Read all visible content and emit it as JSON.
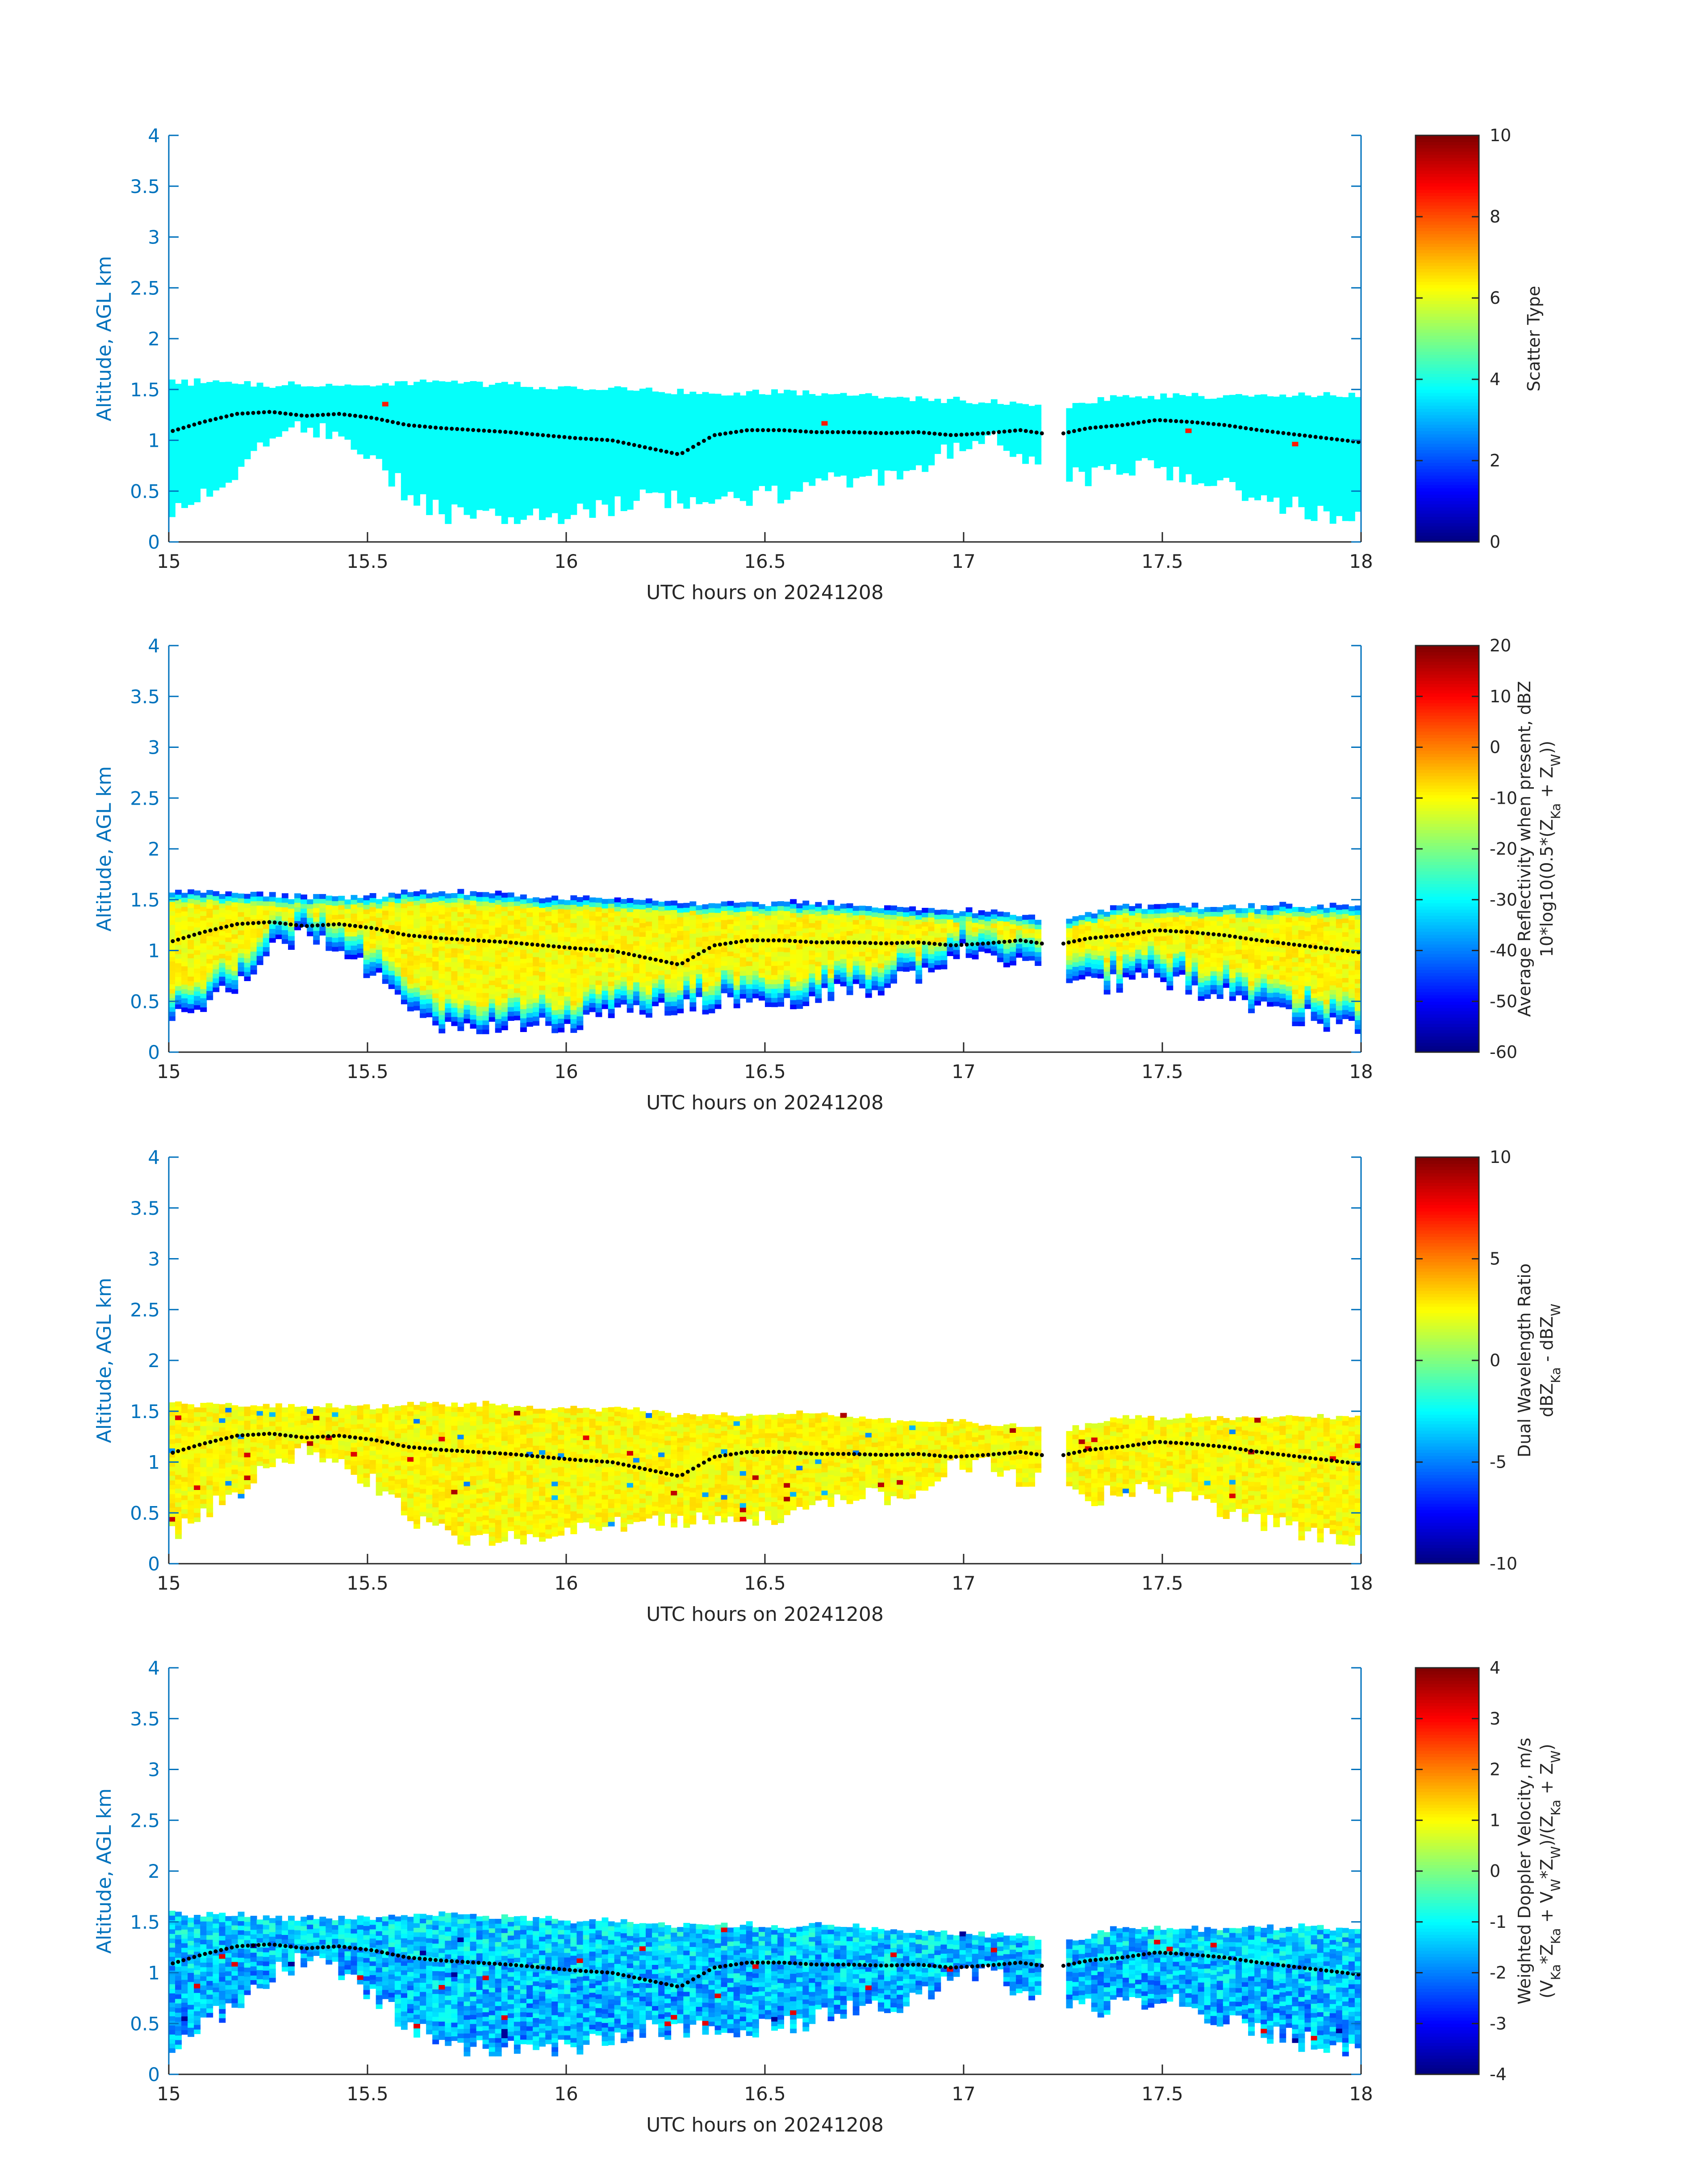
{
  "chart_data": [
    {
      "type": "heatmap",
      "xlabel": "UTC hours on 20241208",
      "ylabel": "Altitude, AGL km",
      "xlim": [
        15,
        18
      ],
      "ylim": [
        0,
        4
      ],
      "xticks": [
        "15",
        "15.5",
        "16",
        "16.5",
        "17",
        "17.5",
        "18"
      ],
      "yticks": [
        "0",
        "0.5",
        "1",
        "1.5",
        "2",
        "2.5",
        "3",
        "3.5",
        "4"
      ],
      "colorbar": {
        "label_lines": [
          "Scatter Type"
        ],
        "range": [
          0,
          10
        ],
        "ticks": [
          "0",
          "2",
          "4",
          "6",
          "8",
          "10"
        ]
      },
      "dominant_value": 3.8,
      "outlier_values": [
        8.5
      ],
      "colormap": "jet",
      "cloud_base_km": [
        0.25,
        0.45,
        0.65,
        0.95,
        1.1,
        0.95,
        0.75,
        0.45,
        0.25,
        0.2,
        0.2,
        0.2,
        0.25,
        0.3,
        0.4,
        0.35,
        0.45,
        0.4,
        0.45,
        0.5,
        0.6,
        0.6,
        0.7,
        0.9,
        1.0,
        0.8,
        0.7,
        0.6,
        0.65,
        0.7,
        0.6,
        0.5,
        0.4,
        0.3,
        0.25,
        0.2
      ],
      "cloud_top_km": [
        1.55,
        1.55,
        1.55,
        1.52,
        1.52,
        1.52,
        1.52,
        1.55,
        1.55,
        1.55,
        1.53,
        1.5,
        1.5,
        1.5,
        1.48,
        1.45,
        1.45,
        1.45,
        1.45,
        1.45,
        1.43,
        1.4,
        1.38,
        1.38,
        1.35,
        1.35,
        1.25,
        1.35,
        1.42,
        1.42,
        1.42,
        1.42,
        1.42,
        1.42,
        1.42,
        1.42
      ],
      "gaps": [
        [
          17.2,
          17.25
        ]
      ],
      "boundary_layer_height_km": [
        1.08,
        1.18,
        1.26,
        1.28,
        1.24,
        1.26,
        1.22,
        1.15,
        1.12,
        1.1,
        1.08,
        1.05,
        1.02,
        1.0,
        0.93,
        0.86,
        1.05,
        1.1,
        1.1,
        1.08,
        1.08,
        1.07,
        1.08,
        1.05,
        1.07,
        1.1,
        1.05,
        1.12,
        1.15,
        1.2,
        1.18,
        1.15,
        1.1,
        1.06,
        1.02,
        0.98
      ]
    },
    {
      "type": "heatmap",
      "xlabel": "UTC hours on 20241208",
      "ylabel": "Altitude, AGL km",
      "xlim": [
        15,
        18
      ],
      "ylim": [
        0,
        4
      ],
      "xticks": [
        "15",
        "15.5",
        "16",
        "16.5",
        "17",
        "17.5",
        "18"
      ],
      "yticks": [
        "0",
        "0.5",
        "1",
        "1.5",
        "2",
        "2.5",
        "3",
        "3.5",
        "4"
      ],
      "colorbar": {
        "label_lines": [
          "Average Reflectivity when present, dBZ",
          "10*log10(0.5*(Z<sub>Ka</sub> + Z<sub>W</sub>))"
        ],
        "range": [
          -60,
          20
        ],
        "ticks": [
          "-60",
          "-50",
          "-40",
          "-30",
          "-20",
          "-10",
          "0",
          "10",
          "20"
        ]
      },
      "value_range_shown": [
        -55,
        -5
      ],
      "colormap": "jet",
      "cloud_base_km": [
        0.25,
        0.45,
        0.65,
        0.95,
        1.1,
        0.95,
        0.75,
        0.45,
        0.25,
        0.2,
        0.2,
        0.2,
        0.25,
        0.3,
        0.4,
        0.35,
        0.45,
        0.4,
        0.45,
        0.5,
        0.6,
        0.6,
        0.7,
        0.9,
        1.0,
        0.8,
        0.7,
        0.6,
        0.65,
        0.7,
        0.6,
        0.5,
        0.4,
        0.3,
        0.25,
        0.2
      ],
      "cloud_top_km": [
        1.55,
        1.55,
        1.55,
        1.52,
        1.52,
        1.52,
        1.52,
        1.55,
        1.55,
        1.55,
        1.53,
        1.5,
        1.5,
        1.5,
        1.48,
        1.45,
        1.45,
        1.45,
        1.45,
        1.45,
        1.43,
        1.4,
        1.38,
        1.38,
        1.35,
        1.35,
        1.25,
        1.35,
        1.42,
        1.42,
        1.42,
        1.42,
        1.42,
        1.42,
        1.42,
        1.42
      ],
      "gaps": [
        [
          17.2,
          17.25
        ]
      ],
      "boundary_layer_height_km": [
        1.08,
        1.18,
        1.26,
        1.28,
        1.24,
        1.26,
        1.22,
        1.15,
        1.12,
        1.1,
        1.08,
        1.05,
        1.02,
        1.0,
        0.93,
        0.86,
        1.05,
        1.1,
        1.1,
        1.08,
        1.08,
        1.07,
        1.08,
        1.05,
        1.07,
        1.1,
        1.05,
        1.12,
        1.15,
        1.2,
        1.18,
        1.15,
        1.1,
        1.06,
        1.02,
        0.98
      ]
    },
    {
      "type": "heatmap",
      "xlabel": "UTC hours on 20241208",
      "ylabel": "Altitude, AGL km",
      "xlim": [
        15,
        18
      ],
      "ylim": [
        0,
        4
      ],
      "xticks": [
        "15",
        "15.5",
        "16",
        "16.5",
        "17",
        "17.5",
        "18"
      ],
      "yticks": [
        "0",
        "0.5",
        "1",
        "1.5",
        "2",
        "2.5",
        "3",
        "3.5",
        "4"
      ],
      "colorbar": {
        "label_lines": [
          "Dual Wavelength Ratio",
          "dBZ<sub>Ka</sub> - dBZ<sub>W</sub>"
        ],
        "range": [
          -10,
          10
        ],
        "ticks": [
          "-10",
          "-5",
          "0",
          "5",
          "10"
        ]
      },
      "value_range_shown": [
        0,
        5
      ],
      "colormap": "jet",
      "cloud_base_km": [
        0.25,
        0.45,
        0.65,
        0.95,
        1.1,
        0.95,
        0.75,
        0.45,
        0.25,
        0.2,
        0.2,
        0.2,
        0.25,
        0.3,
        0.4,
        0.35,
        0.45,
        0.4,
        0.45,
        0.5,
        0.6,
        0.6,
        0.7,
        0.9,
        1.0,
        0.8,
        0.7,
        0.6,
        0.65,
        0.7,
        0.6,
        0.5,
        0.4,
        0.3,
        0.25,
        0.2
      ],
      "cloud_top_km": [
        1.55,
        1.55,
        1.55,
        1.52,
        1.52,
        1.52,
        1.52,
        1.55,
        1.55,
        1.55,
        1.53,
        1.5,
        1.5,
        1.5,
        1.48,
        1.45,
        1.45,
        1.45,
        1.45,
        1.45,
        1.43,
        1.4,
        1.38,
        1.38,
        1.35,
        1.35,
        1.25,
        1.35,
        1.42,
        1.42,
        1.42,
        1.42,
        1.42,
        1.42,
        1.42,
        1.42
      ],
      "gaps": [
        [
          17.2,
          17.25
        ]
      ],
      "boundary_layer_height_km": [
        1.08,
        1.18,
        1.26,
        1.28,
        1.24,
        1.26,
        1.22,
        1.15,
        1.12,
        1.1,
        1.08,
        1.05,
        1.02,
        1.0,
        0.93,
        0.86,
        1.05,
        1.1,
        1.1,
        1.08,
        1.08,
        1.07,
        1.08,
        1.05,
        1.07,
        1.1,
        1.05,
        1.12,
        1.15,
        1.2,
        1.18,
        1.15,
        1.1,
        1.06,
        1.02,
        0.98
      ]
    },
    {
      "type": "heatmap",
      "xlabel": "UTC hours on 20241208",
      "ylabel": "Altitude, AGL km",
      "xlim": [
        15,
        18
      ],
      "ylim": [
        0,
        4
      ],
      "xticks": [
        "15",
        "15.5",
        "16",
        "16.5",
        "17",
        "17.5",
        "18"
      ],
      "yticks": [
        "0",
        "0.5",
        "1",
        "1.5",
        "2",
        "2.5",
        "3",
        "3.5",
        "4"
      ],
      "colorbar": {
        "label_lines": [
          "Weighted Doppler Velocity, m/s",
          "(V<sub>Ka</sub>*Z<sub>Ka</sub> + V<sub>W</sub>*Z<sub>W</sub>)/(Z<sub>Ka</sub> + Z<sub>W</sub>)"
        ],
        "range": [
          -4,
          4
        ],
        "ticks": [
          "-4",
          "-3",
          "-2",
          "-1",
          "0",
          "1",
          "2",
          "3",
          "4"
        ]
      },
      "value_range_shown": [
        -2.5,
        0.5
      ],
      "colormap": "jet",
      "cloud_base_km": [
        0.25,
        0.45,
        0.65,
        0.95,
        1.1,
        0.95,
        0.75,
        0.45,
        0.25,
        0.2,
        0.2,
        0.2,
        0.25,
        0.3,
        0.4,
        0.35,
        0.45,
        0.4,
        0.45,
        0.5,
        0.6,
        0.6,
        0.7,
        0.9,
        1.0,
        0.8,
        0.7,
        0.6,
        0.65,
        0.7,
        0.6,
        0.5,
        0.4,
        0.3,
        0.25,
        0.2
      ],
      "cloud_top_km": [
        1.55,
        1.55,
        1.55,
        1.52,
        1.52,
        1.52,
        1.52,
        1.55,
        1.55,
        1.55,
        1.53,
        1.5,
        1.5,
        1.5,
        1.48,
        1.45,
        1.45,
        1.45,
        1.45,
        1.45,
        1.43,
        1.4,
        1.38,
        1.38,
        1.35,
        1.35,
        1.25,
        1.35,
        1.42,
        1.42,
        1.42,
        1.42,
        1.42,
        1.42,
        1.42,
        1.42
      ],
      "gaps": [
        [
          17.2,
          17.25
        ]
      ],
      "boundary_layer_height_km": [
        1.08,
        1.18,
        1.26,
        1.28,
        1.24,
        1.26,
        1.22,
        1.15,
        1.12,
        1.1,
        1.08,
        1.05,
        1.02,
        1.0,
        0.93,
        0.86,
        1.05,
        1.1,
        1.1,
        1.08,
        1.08,
        1.07,
        1.08,
        1.05,
        1.07,
        1.1,
        1.05,
        1.12,
        1.15,
        1.2,
        1.18,
        1.15,
        1.1,
        1.06,
        1.02,
        0.98
      ]
    }
  ]
}
